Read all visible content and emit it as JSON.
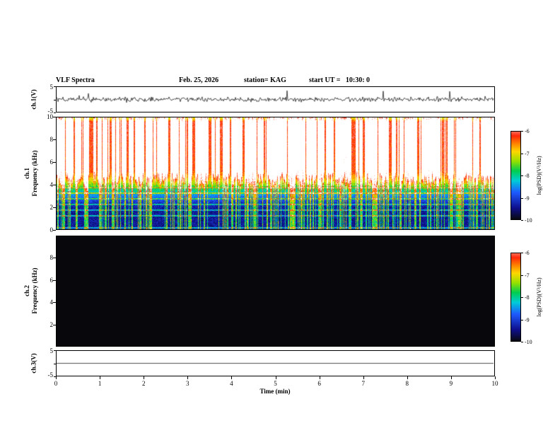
{
  "header": {
    "title": "VLF Spectra",
    "date": "Feb. 25, 2026",
    "station": "station= KAG",
    "start_ut": "start UT =   10:30: 0"
  },
  "x_axis": {
    "label": "Time (min)",
    "min": 0,
    "max": 10,
    "ticks": [
      "0",
      "1",
      "2",
      "3",
      "4",
      "5",
      "6",
      "7",
      "8",
      "9",
      "10"
    ]
  },
  "colorbar": {
    "label": "log(PSD)(V²/Hz)",
    "ticks": [
      "-6",
      "-7",
      "-8",
      "-9",
      "-10"
    ],
    "range": [
      -10,
      -6
    ]
  },
  "panels": {
    "ch1_wave": {
      "ylabel": "ch.1(V)",
      "ytop": "5",
      "ybottom": "-5"
    },
    "ch1_spec": {
      "row_label": "ch.1",
      "ylabel": "Frequency (kHz)",
      "yticks": [
        "10",
        "8",
        "6",
        "4",
        "2",
        "0"
      ]
    },
    "ch2_spec": {
      "row_label": "ch.2",
      "ylabel": "Frequency (kHz)",
      "yticks": [
        "8",
        "6",
        "4",
        "2"
      ]
    },
    "ch3_wave": {
      "ylabel": "ch.3(V)",
      "ytop": "5",
      "ybottom": "-5"
    }
  },
  "chart_data": [
    {
      "type": "line",
      "name": "ch1_voltage",
      "ylabel": "ch.1(V)",
      "ylim": [
        -5,
        5
      ],
      "xlim": [
        0,
        10
      ],
      "description": "Noisy trace centred on 0 V, ~1-2 V peak-to-peak with frequent small impulsive spikes across the full 10 minute record."
    },
    {
      "type": "heatmap",
      "name": "ch1_spectrogram",
      "channel": "ch.1",
      "ylabel": "Frequency (kHz)",
      "ylim": [
        0,
        10
      ],
      "xlim": [
        0,
        10
      ],
      "zlabel": "log(PSD)(V²/Hz)",
      "zlim": [
        -10,
        -6
      ],
      "legend_position": "right-colorbar",
      "description": "Continuous dense vertical burst streaks: PSD saturated near -6 (white/red) from ~5-10 kHz, yellow-green transition band 4-5 kHz, mostly -9 to -10 (blue/black) below 4 kHz, cut by bright green vertical streaks reaching 0 kHz and faint yellow horizontal interference lines near 1-3.7 kHz."
    },
    {
      "type": "heatmap",
      "name": "ch2_spectrogram",
      "channel": "ch.2",
      "ylabel": "Frequency (kHz)",
      "ylim": [
        0,
        10
      ],
      "xlim": [
        0,
        10
      ],
      "zlabel": "log(PSD)(V²/Hz)",
      "zlim": [
        -10,
        -6
      ],
      "legend_position": "right-colorbar",
      "description": "No signal: uniform minimum PSD (solid black) over the whole panel."
    },
    {
      "type": "line",
      "name": "ch3_voltage",
      "ylabel": "ch.3(V)",
      "ylim": [
        -5,
        5
      ],
      "xlim": [
        0,
        10
      ],
      "description": "Flat line at 0 V for the entire record."
    }
  ]
}
